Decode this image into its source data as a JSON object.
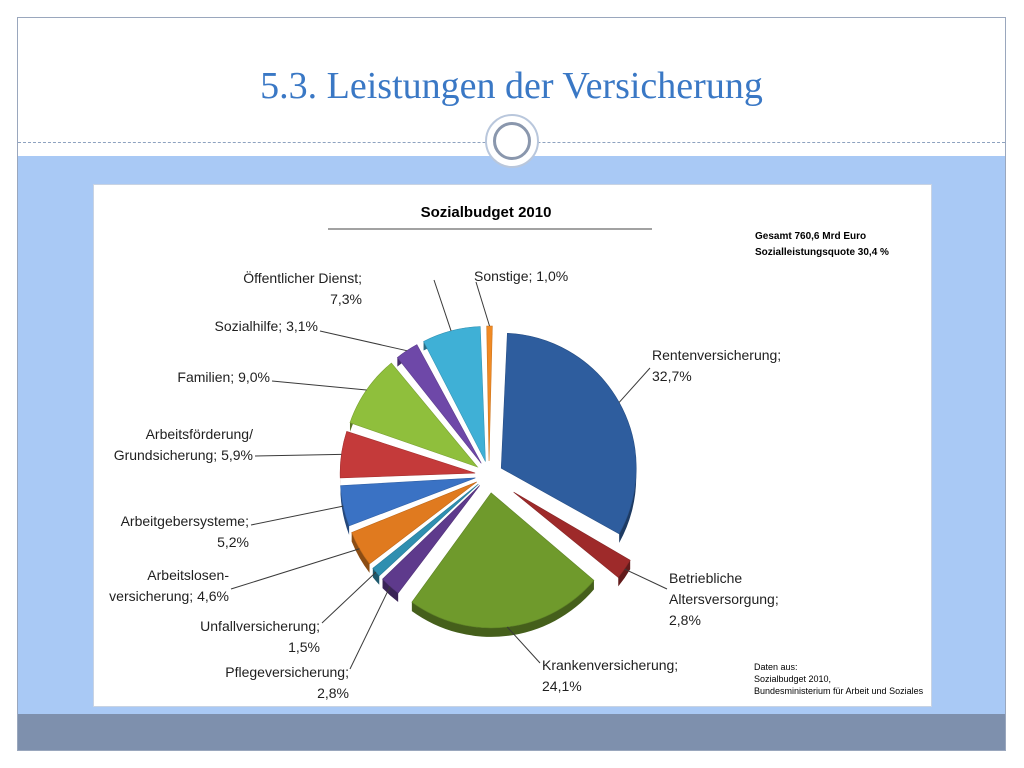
{
  "slide": {
    "title": "5.3. Leistungen der Versicherung"
  },
  "colors": {
    "title": "#3a78c5",
    "content_background": "#a9c9f5",
    "footer": "#7e90ad"
  },
  "chart_data": {
    "type": "pie",
    "title": "Sozialbudget 2010",
    "summary": [
      "Gesamt  760,6 Mrd Euro",
      "Sozialleistungsquote  30,4 %"
    ],
    "source": [
      "Daten aus:",
      "Sozialbudget 2010,",
      "Bundesministerium für Arbeit und Soziales"
    ],
    "slices": [
      {
        "label_lines": [
          "Rentenversicherung;",
          "32,7%"
        ],
        "value": 32.7,
        "color": "#2e5d9e"
      },
      {
        "label_lines": [
          "Betriebliche",
          "Altersversorgung;",
          "2,8%"
        ],
        "value": 2.8,
        "color": "#9e2a2a"
      },
      {
        "label_lines": [
          "Krankenversicherung;",
          "24,1%"
        ],
        "value": 24.1,
        "color": "#6f9a2c"
      },
      {
        "label_lines": [
          "Pflegeversicherung;",
          "2,8%"
        ],
        "value": 2.8,
        "color": "#5e3a8c"
      },
      {
        "label_lines": [
          "Unfallversicherung;",
          "1,5%"
        ],
        "value": 1.5,
        "color": "#2f8fb0"
      },
      {
        "label_lines": [
          "Arbeitslosen-",
          "versicherung; 4,6%"
        ],
        "value": 4.6,
        "color": "#e07a1f"
      },
      {
        "label_lines": [
          "Arbeitgebersysteme;",
          "5,2%"
        ],
        "value": 5.2,
        "color": "#3a72c4"
      },
      {
        "label_lines": [
          "Arbeitsförderung/",
          "Grundsicherung; 5,9%"
        ],
        "value": 5.9,
        "color": "#c43a3a"
      },
      {
        "label_lines": [
          "Familien; 9,0%"
        ],
        "value": 9.0,
        "color": "#8fbf3c"
      },
      {
        "label_lines": [
          "Sozialhilfe; 3,1%"
        ],
        "value": 3.1,
        "color": "#6e48a8"
      },
      {
        "label_lines": [
          "Öffentlicher Dienst;",
          "7,3%"
        ],
        "value": 7.3,
        "color": "#3fb0d6"
      },
      {
        "label_lines": [
          "Sonstige; 1,0%"
        ],
        "value": 1.0,
        "color": "#f08a24"
      }
    ]
  }
}
